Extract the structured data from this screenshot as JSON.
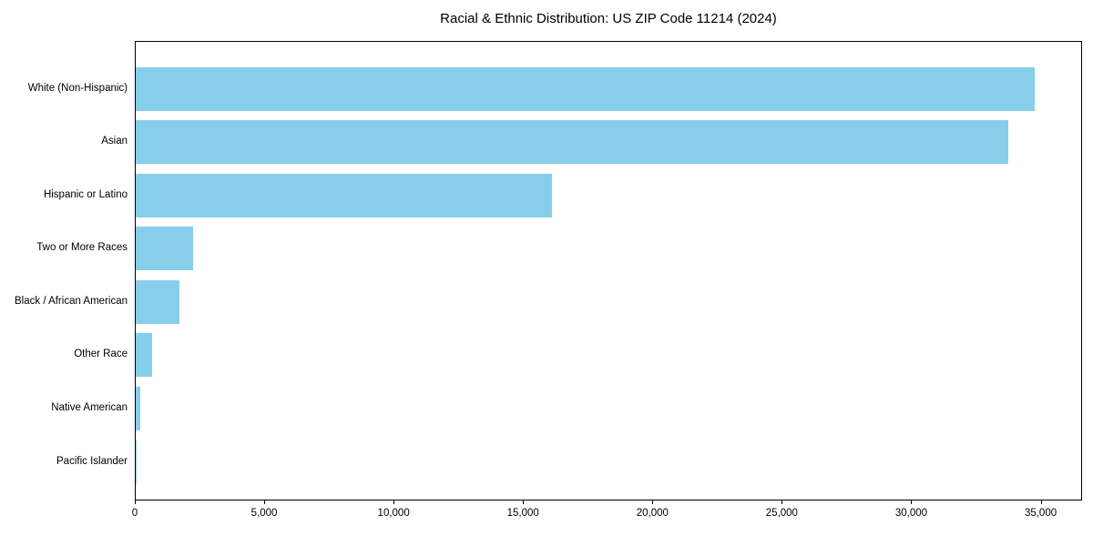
{
  "chart_data": {
    "type": "bar",
    "orientation": "horizontal",
    "title": "Racial & Ethnic Distribution: US ZIP Code 11214 (2024)",
    "categories": [
      "White (Non-Hispanic)",
      "Asian",
      "Hispanic or Latino",
      "Two or More Races",
      "Black / African American",
      "Other Race",
      "Native American",
      "Pacific Islander"
    ],
    "values": [
      34750,
      33700,
      16100,
      2220,
      1700,
      640,
      180,
      20
    ],
    "bar_color": "#87CEEB",
    "xlabel": "",
    "ylabel": "",
    "xlim": [
      0,
      36600
    ],
    "x_ticks": [
      0,
      5000,
      10000,
      15000,
      20000,
      25000,
      30000,
      35000
    ],
    "x_tick_labels": [
      "0",
      "5,000",
      "10,000",
      "15,000",
      "20,000",
      "25,000",
      "30,000",
      "35,000"
    ],
    "grid": false,
    "legend": "none"
  }
}
